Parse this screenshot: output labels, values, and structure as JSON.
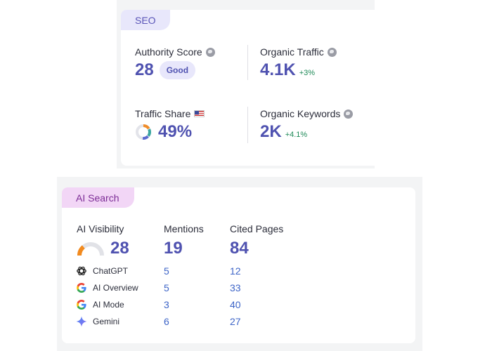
{
  "seo": {
    "tag": "SEO",
    "authority_score": {
      "label": "Authority Score",
      "value": "28",
      "badge": "Good"
    },
    "organic_traffic": {
      "label": "Organic Traffic",
      "value": "4.1K",
      "delta": "+3%"
    },
    "traffic_share": {
      "label": "Traffic Share",
      "value": "49%",
      "share_fraction": 0.49
    },
    "organic_keywords": {
      "label": "Organic Keywords",
      "value": "2K",
      "delta": "+4.1%"
    }
  },
  "ai_search": {
    "tag": "AI Search",
    "headers": {
      "visibility": "AI Visibility",
      "mentions": "Mentions",
      "cited_pages": "Cited Pages"
    },
    "totals": {
      "visibility": "28",
      "mentions": "19",
      "cited_pages": "84"
    },
    "visibility_fraction": 0.28,
    "sources": [
      {
        "name": "ChatGPT",
        "icon": "chatgpt-icon",
        "mentions": "5",
        "cited_pages": "12"
      },
      {
        "name": "AI Overview",
        "icon": "google-icon",
        "mentions": "5",
        "cited_pages": "33"
      },
      {
        "name": "AI Mode",
        "icon": "google-icon",
        "mentions": "3",
        "cited_pages": "40"
      },
      {
        "name": "Gemini",
        "icon": "gemini-icon",
        "mentions": "6",
        "cited_pages": "27"
      }
    ]
  },
  "colors": {
    "accent": "#4f52b0",
    "positive": "#1f8a58",
    "link": "#3d64c7",
    "seo_tag_bg": "#e8e7fb",
    "ai_tag_bg": "#f2d6f6"
  }
}
